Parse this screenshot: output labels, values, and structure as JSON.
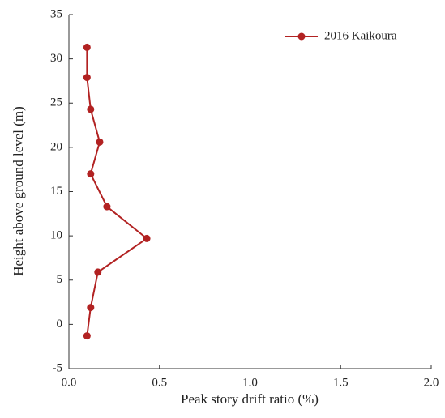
{
  "chart_data": {
    "type": "line",
    "xlabel": "Peak story drift ratio (%)",
    "ylabel": "Height above ground level (m)",
    "x": [
      0.1,
      0.1,
      0.12,
      0.17,
      0.12,
      0.21,
      0.43,
      0.16,
      0.12,
      0.1
    ],
    "series": [
      {
        "name": "2016 Kaikōura",
        "color": "#b22222",
        "values": [
          31.3,
          27.9,
          24.3,
          20.6,
          17.0,
          13.3,
          9.7,
          5.9,
          1.9,
          -1.3
        ]
      }
    ],
    "xlim": [
      0,
      2
    ],
    "xticks": [
      {
        "value": 0,
        "label": "0.0"
      },
      {
        "value": 0.5,
        "label": "0.5"
      },
      {
        "value": 1,
        "label": "1.0"
      },
      {
        "value": 1.5,
        "label": "1.5"
      },
      {
        "value": 2,
        "label": "2.0"
      }
    ],
    "ylim": [
      -5,
      35
    ],
    "yticks": [
      -5,
      0,
      5,
      10,
      15,
      20,
      25,
      30,
      35
    ],
    "grid": false,
    "legend": "upper-right"
  }
}
